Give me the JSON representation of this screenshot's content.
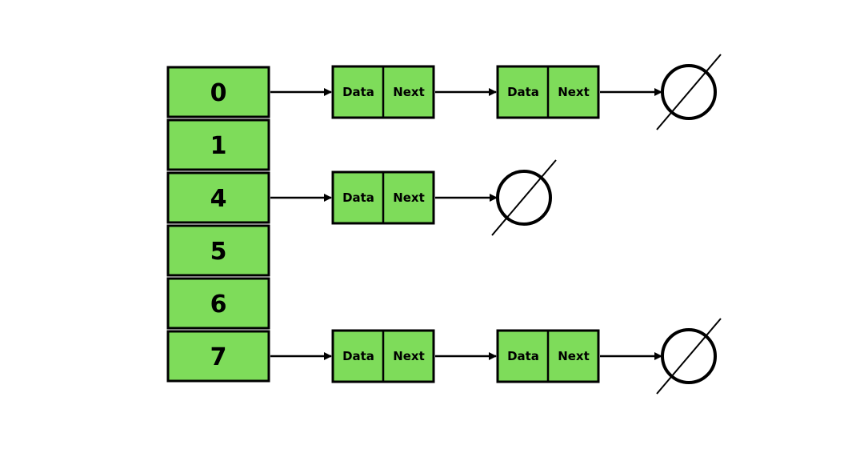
{
  "buckets": [
    {
      "label": "0",
      "chain": [
        {
          "data": "Data",
          "next": "Next"
        },
        {
          "data": "Data",
          "next": "Next"
        }
      ]
    },
    {
      "label": "1",
      "chain": []
    },
    {
      "label": "4",
      "chain": [
        {
          "data": "Data",
          "next": "Next"
        }
      ]
    },
    {
      "label": "5",
      "chain": []
    },
    {
      "label": "6",
      "chain": []
    },
    {
      "label": "7",
      "chain": [
        {
          "data": "Data",
          "next": "Next"
        },
        {
          "data": "Data",
          "next": "Next"
        }
      ]
    }
  ],
  "colors": {
    "node_fill": "#7edc5a",
    "stroke": "#000000",
    "background": "#ffffff"
  }
}
